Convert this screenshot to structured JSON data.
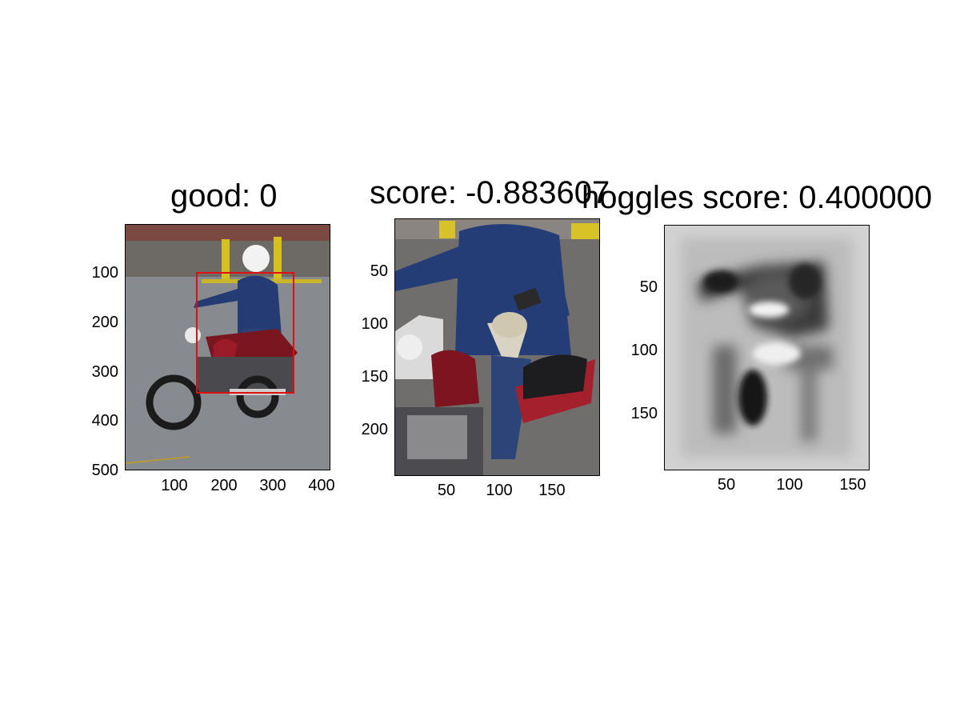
{
  "figure": {
    "panels": [
      {
        "title": "good: 0",
        "yticks": [
          "100",
          "200",
          "300",
          "400",
          "500"
        ],
        "xticks": [
          "100",
          "200",
          "300",
          "400"
        ],
        "image": "motorcycle rider full image with red detection box",
        "box_color": "#e01010"
      },
      {
        "title": "score: -0.883607",
        "yticks": [
          "50",
          "100",
          "150",
          "200"
        ],
        "xticks": [
          "50",
          "100",
          "150"
        ],
        "image": "cropped rider on red motorcycle"
      },
      {
        "title": "hoggles score: 0.400000",
        "yticks": [
          "50",
          "100",
          "150"
        ],
        "xticks": [
          "50",
          "100",
          "150"
        ],
        "image": "grayscale HOG inversion of rider"
      }
    ]
  }
}
